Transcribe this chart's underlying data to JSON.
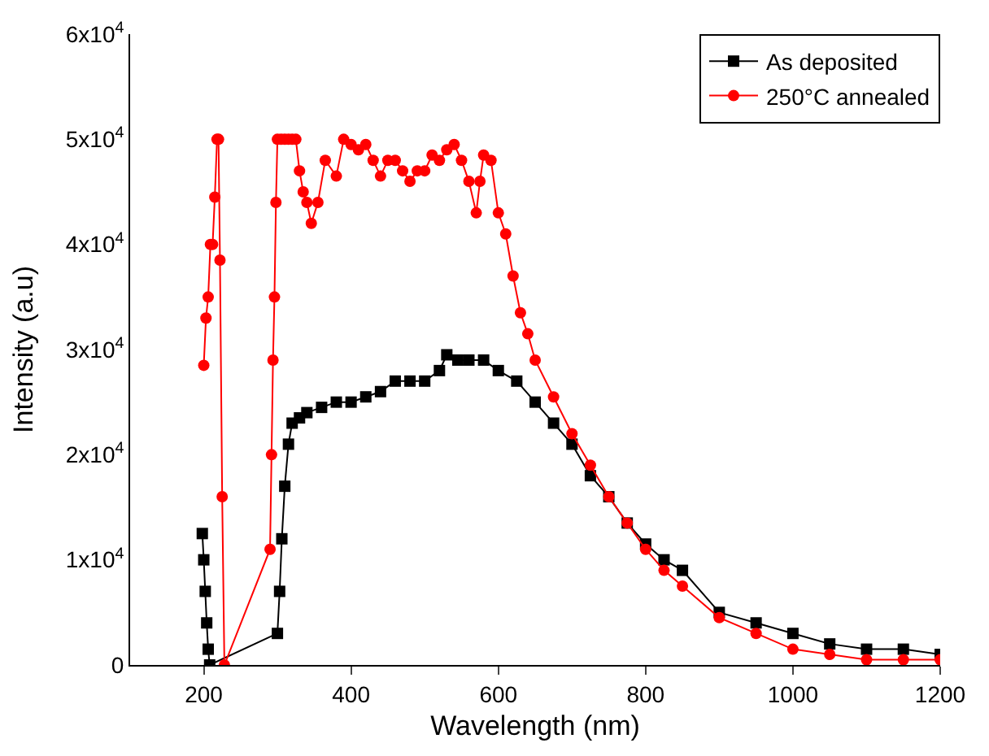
{
  "chart_data": {
    "type": "line",
    "xlabel": "Wavelength (nm)",
    "ylabel": "Intensity (a.u)",
    "xlim": [
      100,
      1200
    ],
    "xticks": [
      200,
      400,
      600,
      800,
      1000,
      1200
    ],
    "ylim": [
      0,
      60000
    ],
    "yticks": [
      0,
      {
        "value": 10000,
        "label": "1x10$^{4}$"
      },
      {
        "value": 20000,
        "label": "2x10$^{4}$"
      },
      {
        "value": 30000,
        "label": "3x10$^{4}$"
      },
      {
        "value": 40000,
        "label": "4x10$^{4}$"
      },
      {
        "value": 50000,
        "label": "5x10$^{4}$"
      },
      {
        "value": 60000,
        "label": "6x10$^{4}$"
      }
    ],
    "legend": "top right",
    "series": [
      {
        "name": "As deposited",
        "color": "#000000",
        "marker": "square",
        "x": [
          198,
          200,
          202,
          204,
          206,
          208,
          300,
          303,
          306,
          310,
          315,
          320,
          330,
          340,
          360,
          380,
          400,
          420,
          440,
          460,
          480,
          500,
          520,
          530,
          545,
          560,
          580,
          600,
          625,
          650,
          675,
          700,
          725,
          750,
          775,
          800,
          825,
          850,
          900,
          950,
          1000,
          1050,
          1100,
          1150,
          1200
        ],
        "values": [
          12500,
          10000,
          7000,
          4000,
          1500,
          0,
          3000,
          7000,
          12000,
          17000,
          21000,
          23000,
          23500,
          24000,
          24500,
          25000,
          25000,
          25500,
          26000,
          27000,
          27000,
          27000,
          28000,
          29500,
          29000,
          29000,
          29000,
          28000,
          27000,
          25000,
          23000,
          21000,
          18000,
          16000,
          13500,
          11500,
          10000,
          9000,
          5000,
          4000,
          3000,
          2000,
          1500,
          1500,
          1000
        ]
      },
      {
        "name": "250°C annealed",
        "color": "#ff0000",
        "marker": "circle",
        "x": [
          200,
          203,
          206,
          209,
          212,
          215,
          218,
          220,
          222,
          225,
          228,
          290,
          292,
          294,
          296,
          298,
          300,
          305,
          310,
          315,
          320,
          325,
          330,
          335,
          340,
          346,
          355,
          365,
          380,
          390,
          400,
          410,
          420,
          430,
          440,
          450,
          460,
          470,
          480,
          490,
          500,
          510,
          520,
          530,
          540,
          550,
          560,
          570,
          575,
          580,
          590,
          600,
          610,
          620,
          630,
          640,
          650,
          675,
          700,
          725,
          750,
          775,
          800,
          825,
          850,
          900,
          950,
          1000,
          1050,
          1100,
          1150,
          1200
        ],
        "values": [
          28500,
          33000,
          35000,
          40000,
          40000,
          44500,
          50000,
          50000,
          38500,
          16000,
          0,
          11000,
          20000,
          29000,
          35000,
          44000,
          50000,
          50000,
          50000,
          50000,
          50000,
          50000,
          47000,
          45000,
          44000,
          42000,
          44000,
          48000,
          46500,
          50000,
          49500,
          49000,
          49500,
          48000,
          46500,
          48000,
          48000,
          47000,
          46000,
          47000,
          47000,
          48500,
          48000,
          49000,
          49500,
          48000,
          46000,
          43000,
          46000,
          48500,
          48000,
          43000,
          41000,
          37000,
          33500,
          31500,
          29000,
          25500,
          22000,
          19000,
          16000,
          13500,
          11000,
          9000,
          7500,
          4500,
          3000,
          1500,
          1000,
          500,
          500,
          500
        ]
      }
    ]
  }
}
